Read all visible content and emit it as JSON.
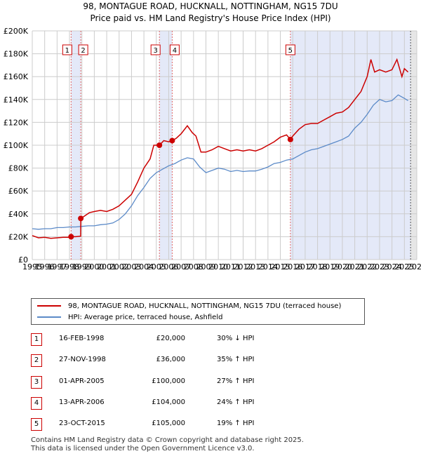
{
  "title": {
    "line1": "98, MONTAGUE ROAD, HUCKNALL, NOTTINGHAM, NG15 7DU",
    "line2": "Price paid vs. HM Land Registry's House Price Index (HPI)"
  },
  "colors": {
    "property": "#cc0000",
    "hpi": "#5b8ac8",
    "marker_line": "#e06666",
    "shade": "#e4e9f8",
    "future_shade": "#e6e6e6",
    "grid": "#cccccc"
  },
  "legend": {
    "property_label": "98, MONTAGUE ROAD, HUCKNALL, NOTTINGHAM, NG15 7DU (terraced house)",
    "hpi_label": "HPI: Average price, terraced house, Ashfield"
  },
  "transactions": [
    {
      "num": "1",
      "date": "16-FEB-1998",
      "price": "£20,000",
      "hpi": "30% ↓ HPI"
    },
    {
      "num": "2",
      "date": "27-NOV-1998",
      "price": "£36,000",
      "hpi": "35% ↑ HPI"
    },
    {
      "num": "3",
      "date": "01-APR-2005",
      "price": "£100,000",
      "hpi": "27% ↑ HPI"
    },
    {
      "num": "4",
      "date": "13-APR-2006",
      "price": "£104,000",
      "hpi": "24% ↑ HPI"
    },
    {
      "num": "5",
      "date": "23-OCT-2015",
      "price": "£105,000",
      "hpi": "19% ↑ HPI"
    }
  ],
  "footer": {
    "line1": "Contains HM Land Registry data © Crown copyright and database right 2025.",
    "line2": "This data is licensed under the Open Government Licence v3.0."
  },
  "chart_data": {
    "type": "line",
    "title": "Price paid vs. HM Land Registry's House Price Index (HPI)",
    "xlabel": "",
    "ylabel": "",
    "xlim": [
      1995,
      2026
    ],
    "ylim": [
      0,
      200000
    ],
    "y_ticks": [
      0,
      20000,
      40000,
      60000,
      80000,
      100000,
      120000,
      140000,
      160000,
      180000,
      200000
    ],
    "y_tick_labels": [
      "£0",
      "£20K",
      "£40K",
      "£60K",
      "£80K",
      "£100K",
      "£120K",
      "£140K",
      "£160K",
      "£180K",
      "£200K"
    ],
    "x_ticks": [
      1995,
      1996,
      1997,
      1998,
      1999,
      2000,
      2001,
      2002,
      2003,
      2004,
      2005,
      2006,
      2007,
      2008,
      2009,
      2010,
      2011,
      2012,
      2013,
      2014,
      2015,
      2016,
      2017,
      2018,
      2019,
      2020,
      2021,
      2022,
      2023,
      2024,
      2025,
      2026
    ],
    "x_tick_labels": [
      "1995",
      "1996",
      "1997",
      "1998",
      "1999",
      "2000",
      "2001",
      "2002",
      "2003",
      "2004",
      "2005",
      "2006",
      "2007",
      "2008",
      "2009",
      "2010",
      "2011",
      "2012",
      "2013",
      "2014",
      "2015",
      "2016",
      "2017",
      "2018",
      "2019",
      "2020",
      "2021",
      "2022",
      "2023",
      "2024",
      "2025",
      "2026"
    ],
    "shaded_from": 2015.81,
    "future_from": 2025.5,
    "series": [
      {
        "name": "98, MONTAGUE ROAD, HUCKNALL, NOTTINGHAM, NG15 7DU (terraced house)",
        "x": [
          1995.0,
          1995.5,
          1996.0,
          1996.5,
          1997.0,
          1997.5,
          1998.0,
          1998.13,
          1998.5,
          1998.9,
          1998.91,
          1999.2,
          1999.6,
          2000.0,
          2000.5,
          2001.0,
          2001.5,
          2002.0,
          2002.5,
          2003.0,
          2003.5,
          2004.0,
          2004.5,
          2004.8,
          2005.25,
          2005.6,
          2006.0,
          2006.28,
          2006.6,
          2007.0,
          2007.5,
          2007.9,
          2008.2,
          2008.6,
          2009.0,
          2009.5,
          2010.0,
          2010.5,
          2011.0,
          2011.5,
          2012.0,
          2012.5,
          2013.0,
          2013.5,
          2014.0,
          2014.5,
          2015.0,
          2015.5,
          2015.81,
          2016.0,
          2016.5,
          2017.0,
          2017.5,
          2018.0,
          2018.5,
          2019.0,
          2019.5,
          2020.0,
          2020.5,
          2021.0,
          2021.5,
          2022.0,
          2022.3,
          2022.6,
          2023.0,
          2023.5,
          2024.0,
          2024.4,
          2024.8,
          2025.0,
          2025.3
        ],
        "y": [
          21000,
          19000,
          19500,
          18500,
          19000,
          19500,
          19500,
          20000,
          20000,
          20500,
          36000,
          38000,
          41000,
          42000,
          43000,
          42000,
          44000,
          47000,
          52000,
          57000,
          68000,
          80000,
          88000,
          100000,
          100000,
          104000,
          103000,
          104000,
          106000,
          110000,
          117000,
          111000,
          108000,
          94000,
          94000,
          96000,
          99000,
          97000,
          95000,
          96000,
          95000,
          96000,
          95000,
          97000,
          100000,
          103000,
          107000,
          109000,
          105000,
          108000,
          114000,
          118000,
          119000,
          119000,
          122000,
          125000,
          128000,
          129000,
          133000,
          140000,
          147000,
          160000,
          175000,
          164000,
          166000,
          164000,
          166000,
          175000,
          160000,
          167000,
          164000
        ]
      },
      {
        "name": "HPI: Average price, terraced house, Ashfield",
        "x": [
          1995.0,
          1995.5,
          1996.0,
          1996.5,
          1997.0,
          1997.5,
          1998.0,
          1998.5,
          1999.0,
          1999.5,
          2000.0,
          2000.5,
          2001.0,
          2001.5,
          2002.0,
          2002.5,
          2003.0,
          2003.5,
          2004.0,
          2004.5,
          2005.0,
          2005.5,
          2006.0,
          2006.5,
          2007.0,
          2007.5,
          2008.0,
          2008.5,
          2009.0,
          2009.5,
          2010.0,
          2010.5,
          2011.0,
          2011.5,
          2012.0,
          2012.5,
          2013.0,
          2013.5,
          2014.0,
          2014.5,
          2015.0,
          2015.5,
          2016.0,
          2016.5,
          2017.0,
          2017.5,
          2018.0,
          2018.5,
          2019.0,
          2019.5,
          2020.0,
          2020.5,
          2021.0,
          2021.5,
          2022.0,
          2022.5,
          2023.0,
          2023.5,
          2024.0,
          2024.5,
          2025.0,
          2025.3
        ],
        "y": [
          27000,
          26500,
          27000,
          27000,
          28000,
          28000,
          28500,
          28500,
          29000,
          29500,
          29500,
          30500,
          31000,
          32000,
          35000,
          40000,
          47000,
          56000,
          63000,
          71000,
          76000,
          79000,
          82000,
          84000,
          87000,
          89000,
          88000,
          81000,
          76000,
          78000,
          80000,
          79000,
          77000,
          78000,
          77000,
          77500,
          77500,
          79000,
          81000,
          84000,
          85000,
          87000,
          88000,
          91000,
          94000,
          96000,
          97000,
          99000,
          101000,
          103000,
          105000,
          108000,
          115000,
          120000,
          127000,
          135000,
          140000,
          138000,
          139000,
          144000,
          141000,
          139000
        ]
      }
    ],
    "sales": [
      {
        "label": "1",
        "x": 1998.13,
        "y": 20000
      },
      {
        "label": "2",
        "x": 1998.91,
        "y": 36000
      },
      {
        "label": "3",
        "x": 2005.25,
        "y": 100000
      },
      {
        "label": "4",
        "x": 2006.28,
        "y": 104000
      },
      {
        "label": "5",
        "x": 2015.81,
        "y": 105000
      }
    ]
  }
}
